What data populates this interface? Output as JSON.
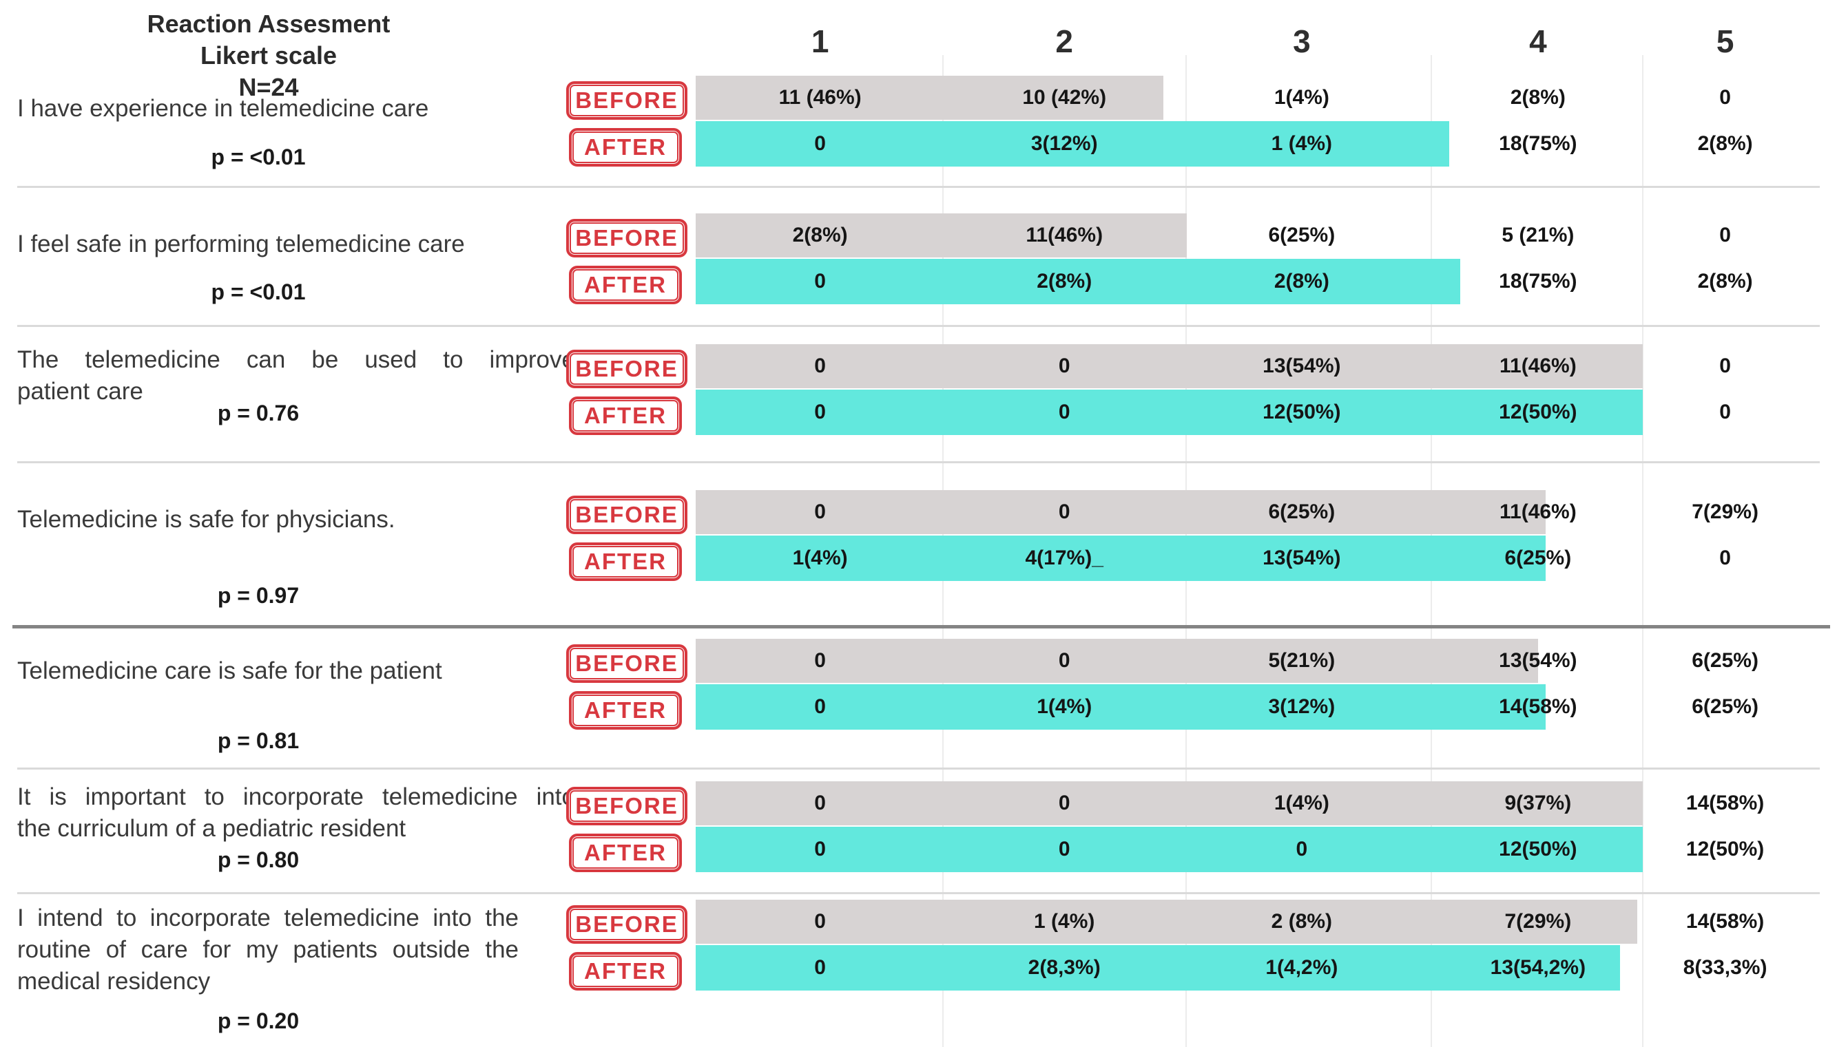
{
  "header": {
    "lines": [
      "Reaction Assesment",
      "Likert scale",
      "N=24"
    ]
  },
  "legend": {
    "before_label": "BEFORE",
    "after_label": "AFTER"
  },
  "colors": {
    "before_bar": "#d7d3d3",
    "after_bar": "#62e8dd",
    "stamp_red": "#d8383f"
  },
  "chart_data": {
    "type": "table",
    "title": "Reaction Assesment Likert scale N=24",
    "n": 24,
    "likert_columns": [
      "1",
      "2",
      "3",
      "4",
      "5"
    ],
    "series_labels": [
      "BEFORE",
      "AFTER"
    ],
    "legend_position": "left",
    "rows": [
      {
        "question": "I have experience in telemedicine care",
        "question_lines": [
          "I have experience in telemedicine care"
        ],
        "p_value": "p = <0.01",
        "before": {
          "values": [
            "11 (46%)",
            "10 (42%)",
            "1(4%)",
            "2(8%)",
            "0"
          ],
          "bar_pct": 41
        },
        "after": {
          "values": [
            "0",
            "3(12%)",
            "1 (4%)",
            "18(75%)",
            "2(8%)"
          ],
          "bar_pct": 66
        }
      },
      {
        "question": "I feel safe in performing telemedicine care",
        "question_lines": [
          "I feel safe in performing telemedicine care"
        ],
        "p_value": "p = <0.01",
        "before": {
          "values": [
            "2(8%)",
            "11(46%)",
            "6(25%)",
            "5 (21%)",
            "0"
          ],
          "bar_pct": 43
        },
        "after": {
          "values": [
            "0",
            "2(8%)",
            "2(8%)",
            "18(75%)",
            "2(8%)"
          ],
          "bar_pct": 67
        }
      },
      {
        "question": "The telemedicine can be used to improve patient care",
        "question_lines": [
          "The telemedicine can be used to improve",
          "patient care"
        ],
        "p_value": "p = 0.76",
        "before": {
          "values": [
            "0",
            "0",
            "13(54%)",
            "11(46%)",
            "0"
          ],
          "bar_pct": 83
        },
        "after": {
          "values": [
            "0",
            "0",
            "12(50%)",
            "12(50%)",
            "0"
          ],
          "bar_pct": 83
        }
      },
      {
        "question": "Telemedicine is safe for physicians.",
        "question_lines": [
          "Telemedicine is safe for physicians."
        ],
        "p_value": "p = 0.97",
        "before": {
          "values": [
            "0",
            "0",
            "6(25%)",
            "11(46%)",
            "7(29%)"
          ],
          "bar_pct": 74.5
        },
        "after": {
          "values": [
            "1(4%)",
            "4(17%)_",
            "13(54%)",
            "6(25%)",
            "0"
          ],
          "bar_pct": 74.5
        }
      },
      {
        "question": "Telemedicine care is safe for the patient",
        "question_lines": [
          "Telemedicine care is safe for the patient"
        ],
        "p_value": "p = 0.81",
        "before": {
          "values": [
            "0",
            "0",
            "5(21%)",
            "13(54%)",
            "6(25%)"
          ],
          "bar_pct": 73.8
        },
        "after": {
          "values": [
            "0",
            "1(4%)",
            "3(12%)",
            "14(58%)",
            "6(25%)"
          ],
          "bar_pct": 74.5
        }
      },
      {
        "question": "It is important to incorporate telemedicine into the curriculum of a pediatric resident",
        "question_lines": [
          "It is important to incorporate telemedicine into",
          "the curriculum of a pediatric resident"
        ],
        "p_value": "p = 0.80",
        "before": {
          "values": [
            "0",
            "0",
            "1(4%)",
            "9(37%)",
            "14(58%)"
          ],
          "bar_pct": 83
        },
        "after": {
          "values": [
            "0",
            "0",
            "0",
            "12(50%)",
            "12(50%)"
          ],
          "bar_pct": 83
        }
      },
      {
        "question": "I intend to incorporate telemedicine into the routine of care for my patients outside the medical residency",
        "question_lines": [
          "I intend to incorporate telemedicine into the",
          "routine of care for my patients outside the",
          "medical residency"
        ],
        "p_value": "p = 0.20",
        "before": {
          "values": [
            "0",
            "1 (4%)",
            "2 (8%)",
            "7(29%)",
            "14(58%)"
          ],
          "bar_pct": 82.5
        },
        "after": {
          "values": [
            "0",
            "2(8,3%)",
            "1(4,2%)",
            "13(54,2%)",
            "8(33,3%)"
          ],
          "bar_pct": 81
        }
      }
    ]
  }
}
